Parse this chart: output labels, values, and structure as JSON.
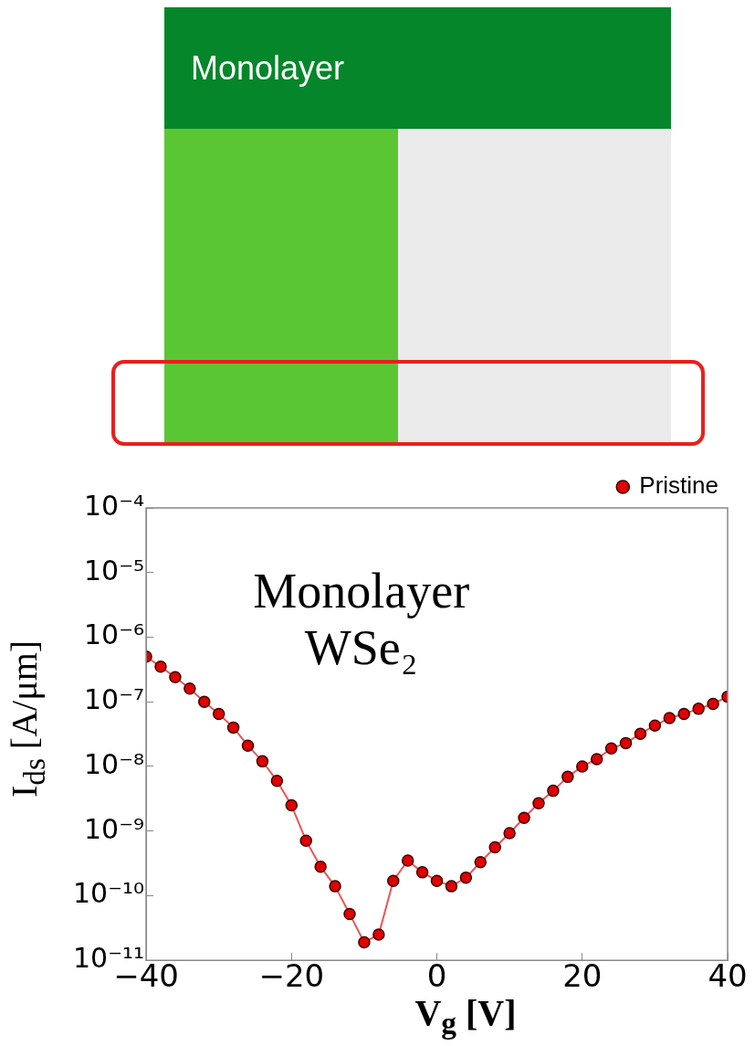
{
  "chart_data": {
    "type": "line",
    "title": "Monolayer",
    "xlabel": "V$_{g}$ [V]",
    "ylabel": "I$_{ds}$ [A/μm]",
    "annotations": [
      "Monolayer",
      "WSe₂"
    ],
    "x": [
      -40,
      -38,
      -36,
      -34,
      -32,
      -30,
      -28,
      -26,
      -24,
      -22,
      -20,
      -18,
      -16,
      -14,
      -12,
      -10,
      -8,
      -6,
      -4,
      -2,
      0,
      2,
      4,
      6,
      8,
      10,
      12,
      14,
      16,
      18,
      20,
      22,
      24,
      26,
      28,
      30,
      32,
      34,
      36,
      38,
      40
    ],
    "series": [
      {
        "name": "Pristine",
        "color": "#e00000",
        "values": [
          5e-07,
          3.5e-07,
          2.4e-07,
          1.6e-07,
          1e-07,
          6.5e-08,
          4e-08,
          2.1e-08,
          1.2e-08,
          6e-09,
          2.5e-09,
          7.1e-10,
          2.8e-10,
          1.4e-10,
          5.2e-11,
          1.9e-11,
          2.5e-11,
          1.7e-10,
          3.5e-10,
          2.3e-10,
          1.7e-10,
          1.4e-10,
          1.9e-10,
          3.3e-10,
          5.6e-10,
          9.3e-10,
          1.6e-09,
          2.7e-09,
          4.2e-09,
          6.9e-09,
          1e-08,
          1.3e-08,
          1.9e-08,
          2.3e-08,
          3.2e-08,
          4.3e-08,
          5.6e-08,
          6.5e-08,
          7.8e-08,
          9.3e-08,
          1.2e-07
        ]
      }
    ],
    "xlim": [
      -40,
      40
    ],
    "xticks": [
      -40,
      -20,
      0,
      20,
      40
    ],
    "ylim": [
      1e-11,
      0.0001
    ],
    "yticks": [
      {
        "value": 1e-11,
        "label": "10⁻¹¹"
      },
      {
        "value": 1e-10,
        "label": "10⁻¹⁰"
      },
      {
        "value": 1e-09,
        "label": "10⁻⁹"
      },
      {
        "value": 1e-08,
        "label": "10⁻⁸"
      },
      {
        "value": 1e-07,
        "label": "10⁻⁷"
      },
      {
        "value": 1e-06,
        "label": "10⁻⁶"
      },
      {
        "value": 1e-05,
        "label": "10⁻⁵"
      },
      {
        "value": 0.0001,
        "label": "10⁻⁴"
      }
    ],
    "log": "y",
    "grid": false,
    "legend": "top right",
    "marker": "circle",
    "line_style": "solid"
  }
}
